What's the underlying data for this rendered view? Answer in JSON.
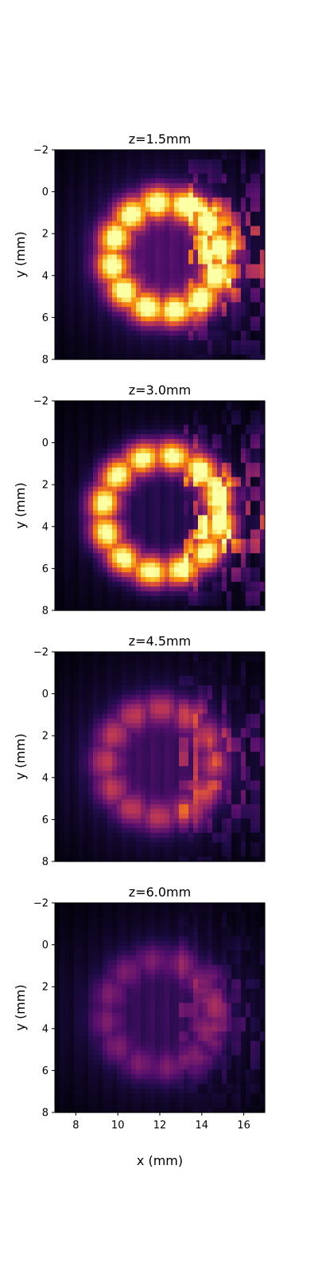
{
  "figure": {
    "background": "#ffffff",
    "colormap": "inferno",
    "xlabel": "x (mm)"
  },
  "chart_data": [
    {
      "type": "heatmap",
      "title": "z=1.5mm",
      "xlabel": "",
      "ylabel": "y (mm)",
      "xlim": [
        7,
        17
      ],
      "ylim": [
        8,
        -2
      ],
      "y_ticks": [
        -2,
        0,
        2,
        4,
        6,
        8
      ],
      "x_ticks": [],
      "pattern": {
        "ring_center": [
          12.3,
          3.1
        ],
        "ring_radius": 2.6,
        "ring_peak": 1.0,
        "speckle_right": 0.55,
        "halo": 0.22
      }
    },
    {
      "type": "heatmap",
      "title": "z=3.0mm",
      "xlabel": "",
      "ylabel": "y (mm)",
      "xlim": [
        7,
        17
      ],
      "ylim": [
        8,
        -2
      ],
      "y_ticks": [
        -2,
        0,
        2,
        4,
        6,
        8
      ],
      "x_ticks": [],
      "pattern": {
        "ring_center": [
          12.1,
          3.4
        ],
        "ring_radius": 2.8,
        "ring_peak": 1.0,
        "speckle_right": 0.65,
        "halo": 0.12
      }
    },
    {
      "type": "heatmap",
      "title": "z=4.5mm",
      "xlabel": "",
      "ylabel": "y (mm)",
      "xlim": [
        7,
        17
      ],
      "ylim": [
        8,
        -2
      ],
      "y_ticks": [
        -2,
        0,
        2,
        4,
        6,
        8
      ],
      "x_ticks": [],
      "pattern": {
        "ring_center": [
          12.0,
          3.3
        ],
        "ring_radius": 2.6,
        "ring_peak": 0.38,
        "speckle_right": 0.3,
        "halo": 0.18
      }
    },
    {
      "type": "heatmap",
      "title": "z=6.0mm",
      "xlabel": "x (mm)",
      "ylabel": "y (mm)",
      "xlim": [
        7,
        17
      ],
      "ylim": [
        8,
        -2
      ],
      "y_ticks": [
        -2,
        0,
        2,
        4,
        6,
        8
      ],
      "x_ticks": [
        8,
        10,
        12,
        14,
        16
      ],
      "pattern": {
        "ring_center": [
          12.0,
          3.3
        ],
        "ring_radius": 2.6,
        "ring_peak": 0.22,
        "speckle_right": 0.15,
        "halo": 0.16
      }
    }
  ]
}
